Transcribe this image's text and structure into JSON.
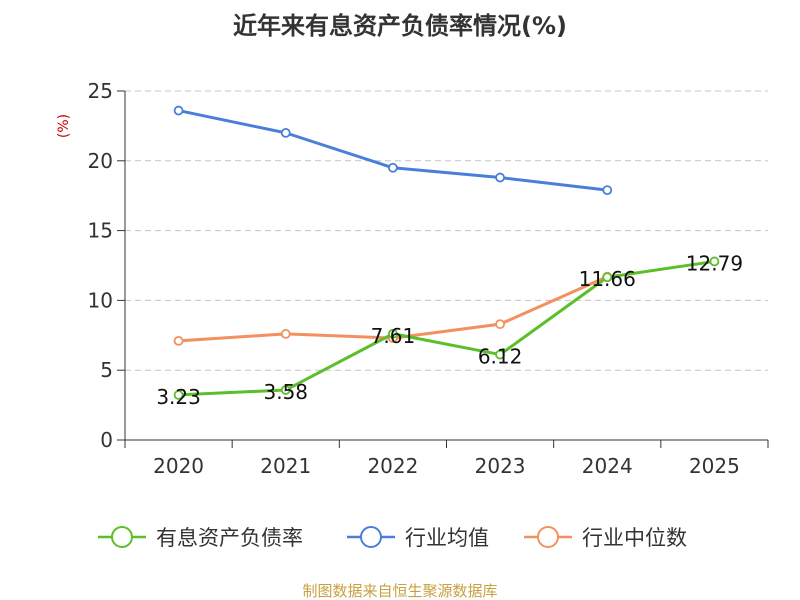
{
  "source_text": "制图数据来自恒生聚源数据库",
  "chart_data": {
    "type": "line",
    "title": "近年来有息资产负债率情况(%)",
    "ylabel": "(%)",
    "xlabel": "",
    "categories": [
      "2020",
      "2021",
      "2022",
      "2023",
      "2024",
      "2025"
    ],
    "ylim": [
      0,
      25
    ],
    "yticks": [
      0,
      5,
      10,
      15,
      20,
      25
    ],
    "grid": true,
    "legend_position": "bottom",
    "series": [
      {
        "name": "有息资产负债率",
        "color": "#5cbf2a",
        "values": [
          3.23,
          3.58,
          7.61,
          6.12,
          11.66,
          12.79
        ],
        "labels": [
          "3.23",
          "3.58",
          "7.61",
          "6.12",
          "11.66",
          "12.79"
        ]
      },
      {
        "name": "行业均值",
        "color": "#4a7fd9",
        "values": [
          23.6,
          22.0,
          19.5,
          18.8,
          17.9,
          null
        ]
      },
      {
        "name": "行业中位数",
        "color": "#f3905e",
        "values": [
          7.1,
          7.6,
          7.3,
          8.3,
          11.7,
          null
        ]
      }
    ]
  }
}
